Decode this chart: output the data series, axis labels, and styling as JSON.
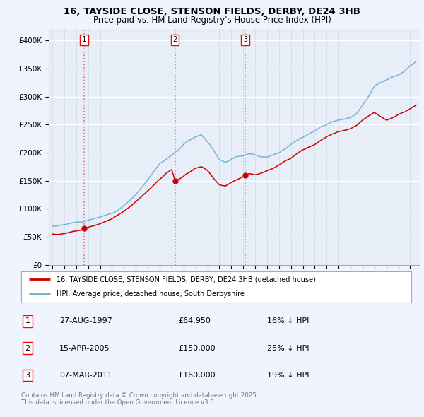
{
  "title_line1": "16, TAYSIDE CLOSE, STENSON FIELDS, DERBY, DE24 3HB",
  "title_line2": "Price paid vs. HM Land Registry's House Price Index (HPI)",
  "legend_red": "16, TAYSIDE CLOSE, STENSON FIELDS, DERBY, DE24 3HB (detached house)",
  "legend_blue": "HPI: Average price, detached house, South Derbyshire",
  "transactions": [
    {
      "num": 1,
      "date": "27-AUG-1997",
      "price": 64950,
      "pct": "16%",
      "dir": "↓"
    },
    {
      "num": 2,
      "date": "15-APR-2005",
      "price": 150000,
      "pct": "25%",
      "dir": "↓"
    },
    {
      "num": 3,
      "date": "07-MAR-2011",
      "price": 160000,
      "pct": "19%",
      "dir": "↓"
    }
  ],
  "transaction_dates_decimal": [
    1997.65,
    2005.29,
    2011.18
  ],
  "transaction_prices": [
    64950,
    150000,
    160000
  ],
  "hpi_color": "#6aaed6",
  "price_color": "#cc0000",
  "dashed_color": "#e06060",
  "background_color": "#f0f4ff",
  "plot_bg": "#e8eef8",
  "ylim": [
    0,
    420000
  ],
  "yticks": [
    0,
    50000,
    100000,
    150000,
    200000,
    250000,
    300000,
    350000,
    400000
  ],
  "xlim_start": 1994.7,
  "xlim_end": 2025.8,
  "footnote": "Contains HM Land Registry data © Crown copyright and database right 2025.\nThis data is licensed under the Open Government Licence v3.0.",
  "hpi_keypoints": [
    [
      1995.0,
      68000
    ],
    [
      1996.0,
      72000
    ],
    [
      1997.0,
      76000
    ],
    [
      1997.65,
      77000
    ],
    [
      1998.0,
      79000
    ],
    [
      1999.0,
      85000
    ],
    [
      2000.0,
      92000
    ],
    [
      2001.0,
      105000
    ],
    [
      2002.0,
      125000
    ],
    [
      2003.0,
      152000
    ],
    [
      2004.0,
      180000
    ],
    [
      2005.0,
      195000
    ],
    [
      2005.29,
      200000
    ],
    [
      2005.8,
      210000
    ],
    [
      2006.0,
      215000
    ],
    [
      2006.5,
      222000
    ],
    [
      2007.0,
      228000
    ],
    [
      2007.5,
      232000
    ],
    [
      2008.0,
      220000
    ],
    [
      2008.5,
      205000
    ],
    [
      2009.0,
      188000
    ],
    [
      2009.5,
      183000
    ],
    [
      2010.0,
      188000
    ],
    [
      2010.5,
      193000
    ],
    [
      2011.0,
      195000
    ],
    [
      2011.18,
      197000
    ],
    [
      2011.5,
      198000
    ],
    [
      2012.0,
      196000
    ],
    [
      2012.5,
      193000
    ],
    [
      2013.0,
      192000
    ],
    [
      2013.5,
      196000
    ],
    [
      2014.0,
      200000
    ],
    [
      2014.5,
      207000
    ],
    [
      2015.0,
      215000
    ],
    [
      2015.5,
      222000
    ],
    [
      2016.0,
      228000
    ],
    [
      2016.5,
      233000
    ],
    [
      2017.0,
      238000
    ],
    [
      2017.5,
      245000
    ],
    [
      2018.0,
      250000
    ],
    [
      2018.5,
      255000
    ],
    [
      2019.0,
      258000
    ],
    [
      2019.5,
      260000
    ],
    [
      2020.0,
      262000
    ],
    [
      2020.5,
      270000
    ],
    [
      2021.0,
      285000
    ],
    [
      2021.5,
      300000
    ],
    [
      2022.0,
      318000
    ],
    [
      2022.5,
      325000
    ],
    [
      2023.0,
      330000
    ],
    [
      2023.5,
      335000
    ],
    [
      2024.0,
      338000
    ],
    [
      2024.5,
      345000
    ],
    [
      2025.0,
      355000
    ],
    [
      2025.5,
      362000
    ]
  ],
  "price_keypoints": [
    [
      1995.0,
      55000
    ],
    [
      1995.5,
      54000
    ],
    [
      1996.0,
      56000
    ],
    [
      1996.5,
      58000
    ],
    [
      1997.0,
      60000
    ],
    [
      1997.5,
      62000
    ],
    [
      1997.65,
      64950
    ],
    [
      1998.0,
      67000
    ],
    [
      1998.5,
      70000
    ],
    [
      1999.0,
      73000
    ],
    [
      2000.0,
      82000
    ],
    [
      2001.0,
      95000
    ],
    [
      2002.0,
      112000
    ],
    [
      2003.0,
      132000
    ],
    [
      2004.0,
      152000
    ],
    [
      2004.5,
      163000
    ],
    [
      2005.0,
      170000
    ],
    [
      2005.29,
      150000
    ],
    [
      2005.5,
      152000
    ],
    [
      2006.0,
      158000
    ],
    [
      2006.5,
      165000
    ],
    [
      2007.0,
      172000
    ],
    [
      2007.5,
      175000
    ],
    [
      2008.0,
      168000
    ],
    [
      2008.5,
      155000
    ],
    [
      2009.0,
      143000
    ],
    [
      2009.5,
      140000
    ],
    [
      2010.0,
      147000
    ],
    [
      2010.5,
      152000
    ],
    [
      2011.0,
      157000
    ],
    [
      2011.18,
      160000
    ],
    [
      2011.5,
      162000
    ],
    [
      2012.0,
      160000
    ],
    [
      2012.5,
      163000
    ],
    [
      2013.0,
      168000
    ],
    [
      2013.5,
      172000
    ],
    [
      2014.0,
      178000
    ],
    [
      2014.5,
      185000
    ],
    [
      2015.0,
      190000
    ],
    [
      2015.5,
      198000
    ],
    [
      2016.0,
      205000
    ],
    [
      2016.5,
      210000
    ],
    [
      2017.0,
      215000
    ],
    [
      2017.5,
      222000
    ],
    [
      2018.0,
      228000
    ],
    [
      2018.5,
      233000
    ],
    [
      2019.0,
      237000
    ],
    [
      2019.5,
      240000
    ],
    [
      2020.0,
      242000
    ],
    [
      2020.5,
      248000
    ],
    [
      2021.0,
      258000
    ],
    [
      2021.5,
      265000
    ],
    [
      2022.0,
      272000
    ],
    [
      2022.5,
      265000
    ],
    [
      2023.0,
      258000
    ],
    [
      2023.5,
      262000
    ],
    [
      2024.0,
      268000
    ],
    [
      2024.5,
      272000
    ],
    [
      2025.0,
      278000
    ],
    [
      2025.5,
      285000
    ]
  ]
}
